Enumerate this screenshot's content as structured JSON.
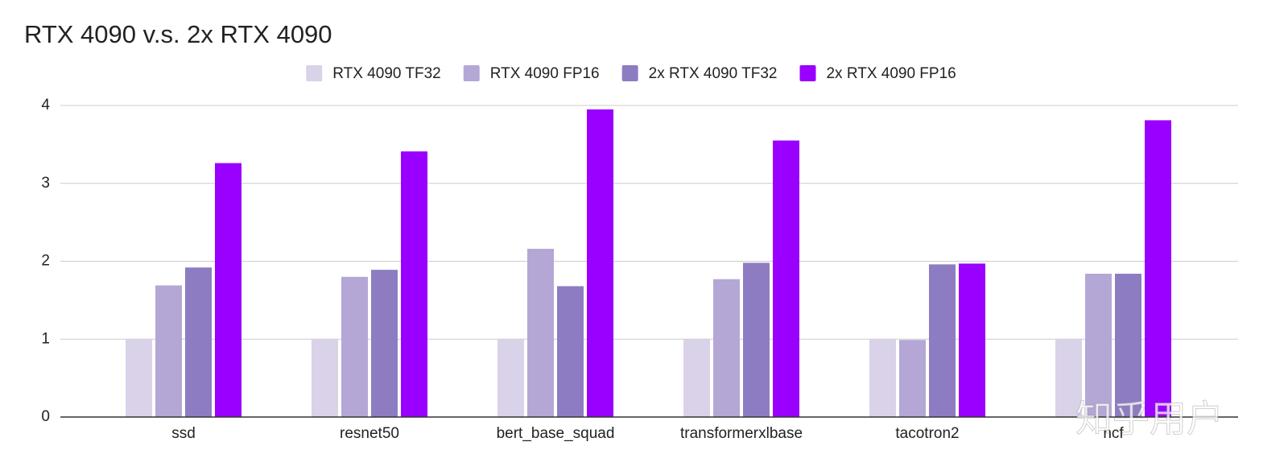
{
  "chart_data": {
    "type": "bar",
    "title": "RTX 4090 v.s. 2x RTX 4090",
    "categories": [
      "ssd",
      "resnet50",
      "bert_base_squad",
      "transformerxlbase",
      "tacotron2",
      "ncf"
    ],
    "series": [
      {
        "name": "RTX 4090 TF32",
        "color": "#d9d2e9",
        "values": [
          1.0,
          1.0,
          1.0,
          1.0,
          1.0,
          1.0
        ]
      },
      {
        "name": "RTX 4090 FP16",
        "color": "#b4a7d6",
        "values": [
          1.69,
          1.8,
          2.16,
          1.77,
          0.99,
          1.84
        ]
      },
      {
        "name": "2x RTX 4090 TF32",
        "color": "#8e7cc3",
        "values": [
          1.92,
          1.89,
          1.68,
          1.98,
          1.96,
          1.84
        ]
      },
      {
        "name": "2x RTX 4090 FP16",
        "color": "#9900ff",
        "values": [
          3.26,
          3.41,
          3.95,
          3.55,
          1.97,
          3.81
        ]
      }
    ],
    "ylim": [
      0,
      4
    ],
    "yticks": [
      0,
      1,
      2,
      3,
      4
    ],
    "grid": true,
    "legend": "top",
    "watermark": "知乎用户"
  }
}
